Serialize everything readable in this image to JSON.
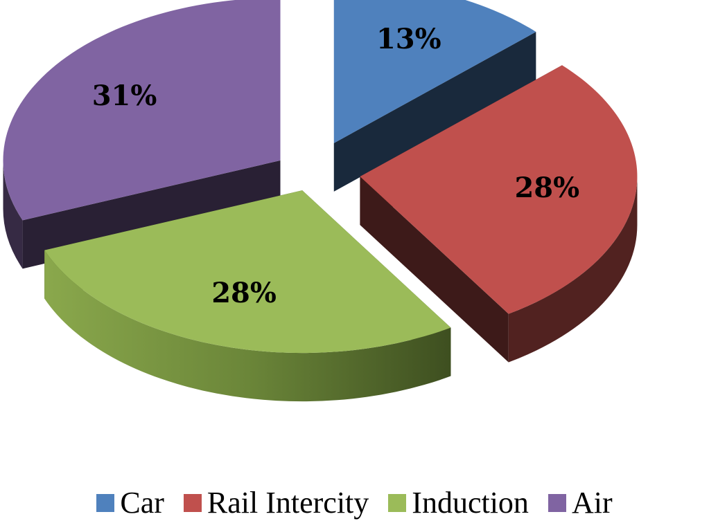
{
  "chart_data": {
    "type": "pie",
    "style": "3d-exploded",
    "categories": [
      "Car",
      "Rail Intercity",
      "Induction",
      "Air"
    ],
    "values": [
      13,
      28,
      28,
      31
    ],
    "labels": [
      "13%",
      "28%",
      "28%",
      "31%"
    ],
    "colors": [
      "#4f81bd",
      "#c0504d",
      "#9bbb59",
      "#8064a2"
    ],
    "legend_position": "bottom"
  }
}
